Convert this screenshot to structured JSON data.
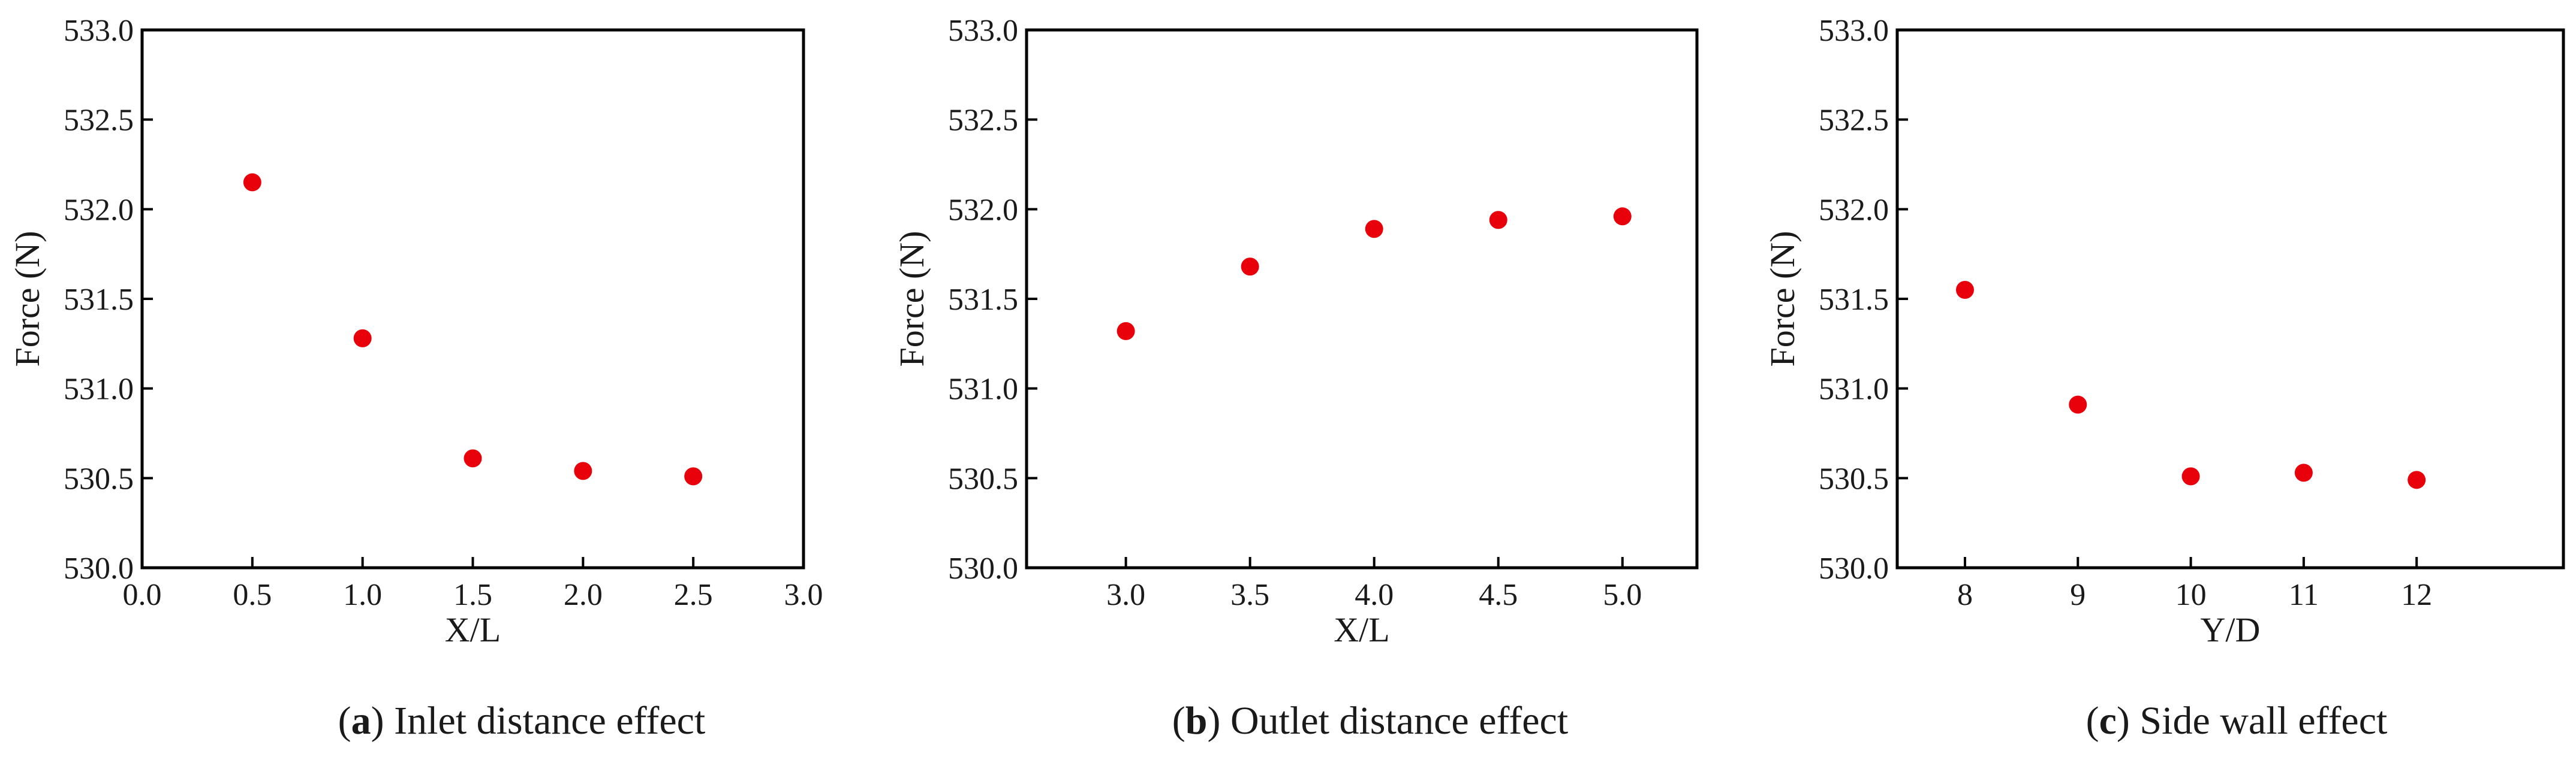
{
  "marker_color": "#e8000b",
  "chart_data": [
    {
      "type": "scatter",
      "caption_letter": "a",
      "caption_text": "Inlet distance effect",
      "xlabel": "X/L",
      "ylabel": "Force (N)",
      "xlim": [
        0.0,
        3.0
      ],
      "ylim": [
        530.0,
        533.0
      ],
      "xticks": [
        "0.0",
        "0.5",
        "1.0",
        "1.5",
        "2.0",
        "2.5",
        "3.0"
      ],
      "yticks": [
        "530.0",
        "530.5",
        "531.0",
        "531.5",
        "532.0",
        "532.5",
        "533.0"
      ],
      "x": [
        0.5,
        1.0,
        1.5,
        2.0,
        2.5
      ],
      "y": [
        532.15,
        531.28,
        530.61,
        530.54,
        530.51
      ]
    },
    {
      "type": "scatter",
      "caption_letter": "b",
      "caption_text": "Outlet distance effect",
      "xlabel": "X/L",
      "ylabel": "Force (N)",
      "xlim": [
        2.6,
        5.3
      ],
      "ylim": [
        530.0,
        533.0
      ],
      "xticks": [
        "3.0",
        "3.5",
        "4.0",
        "4.5",
        "5.0"
      ],
      "yticks": [
        "530.0",
        "530.5",
        "531.0",
        "531.5",
        "532.0",
        "532.5",
        "533.0"
      ],
      "x": [
        3.0,
        3.5,
        4.0,
        4.5,
        5.0
      ],
      "y": [
        531.32,
        531.68,
        531.89,
        531.94,
        531.96
      ]
    },
    {
      "type": "scatter",
      "caption_letter": "c",
      "caption_text": "Side wall effect",
      "xlabel": "Y/D",
      "ylabel": "Force (N)",
      "xlim": [
        7.4,
        13.3
      ],
      "ylim": [
        530.0,
        533.0
      ],
      "xticks": [
        "8",
        "9",
        "10",
        "11",
        "12"
      ],
      "yticks": [
        "530.0",
        "530.5",
        "531.0",
        "531.5",
        "532.0",
        "532.5",
        "533.0"
      ],
      "x": [
        8,
        9,
        10,
        11,
        12
      ],
      "y": [
        531.55,
        530.91,
        530.51,
        530.53,
        530.49
      ]
    }
  ]
}
